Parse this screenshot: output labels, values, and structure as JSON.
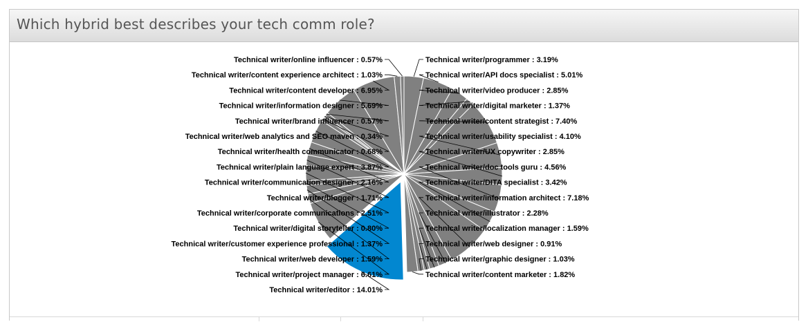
{
  "panel": {
    "title": "Which hybrid best describes your tech comm role?"
  },
  "chart_data": {
    "type": "pie",
    "title": "Which hybrid best describes your tech comm role?",
    "label_format": "{name} : {value}%",
    "colors": {
      "slice": "#808080",
      "highlight": "#0287d0",
      "border": "#ffffff",
      "leader": "#000000"
    },
    "highlighted": "Technical writer/editor",
    "slices": [
      {
        "name": "Technical writer/programmer",
        "value": 3.19
      },
      {
        "name": "Technical writer/API docs specialist",
        "value": 5.01
      },
      {
        "name": "Technical writer/video producer",
        "value": 2.85
      },
      {
        "name": "Technical writer/digital marketer",
        "value": 1.37
      },
      {
        "name": "Technical writer/content strategist",
        "value": 7.4
      },
      {
        "name": "Technical writer/usability specialist",
        "value": 4.1
      },
      {
        "name": "Technical writer/UX copywriter",
        "value": 2.85
      },
      {
        "name": "Technical writer/doc tools guru",
        "value": 4.56
      },
      {
        "name": "Technical writer/DITA specialist",
        "value": 3.42
      },
      {
        "name": "Technical writer/information architect",
        "value": 7.18
      },
      {
        "name": "Technical writer/illustrator",
        "value": 2.28
      },
      {
        "name": "Technical writer/localization manager",
        "value": 1.59
      },
      {
        "name": "Technical writer/web designer",
        "value": 0.91
      },
      {
        "name": "Technical writer/graphic designer",
        "value": 1.03
      },
      {
        "name": "Technical writer/content marketer",
        "value": 1.82
      },
      {
        "name": "Technical writer/editor",
        "value": 14.01
      },
      {
        "name": "Technical writer/project manager",
        "value": 6.61
      },
      {
        "name": "Technical writer/web developer",
        "value": 1.59
      },
      {
        "name": "Technical writer/customer experience professional",
        "value": 1.37
      },
      {
        "name": "Technical writer/digital storyteller",
        "value": 0.8
      },
      {
        "name": "Technical writer/corporate communications",
        "value": 2.51
      },
      {
        "name": "Technical writer/blogger",
        "value": 1.71
      },
      {
        "name": "Technical writer/communication designer",
        "value": 2.16
      },
      {
        "name": "Technical writer/plain language expert",
        "value": 3.87
      },
      {
        "name": "Technical writer/health communicator",
        "value": 0.68
      },
      {
        "name": "Technical writer/web analytics and SEO maven",
        "value": 0.34
      },
      {
        "name": "Technical writer/brand influencer",
        "value": 0.57
      },
      {
        "name": "Technical writer/information designer",
        "value": 5.69
      },
      {
        "name": "Technical writer/content developer",
        "value": 6.95
      },
      {
        "name": "Technical writer/content experience architect",
        "value": 1.03
      },
      {
        "name": "Technical writer/online influencer",
        "value": 0.57
      }
    ]
  }
}
